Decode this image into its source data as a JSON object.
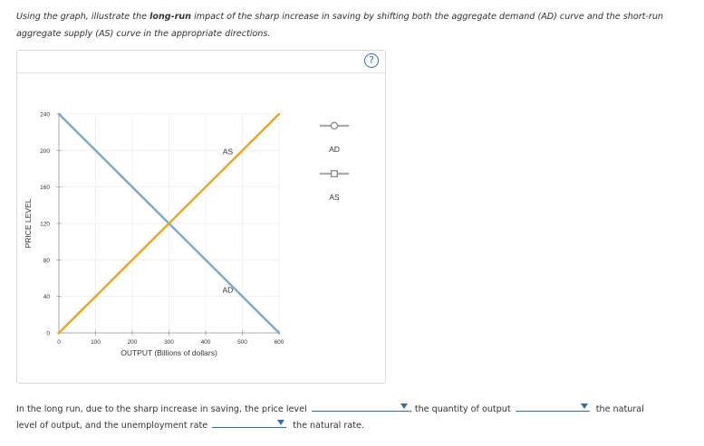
{
  "instructions": {
    "part1": "Using the graph, illustrate the ",
    "bold": "long-run",
    "part2": " impact of the sharp increase in saving by shifting both the aggregate demand (AD) curve and the short-run aggregate supply (AS) curve in the appropriate directions."
  },
  "help_button": {
    "label": "?"
  },
  "chart_data": {
    "type": "line",
    "xlabel": "OUTPUT (Billions of dollars)",
    "ylabel": "PRICE LEVEL",
    "xlim": [
      0,
      600
    ],
    "ylim": [
      0,
      240
    ],
    "x_ticks": [
      "0",
      "100",
      "200",
      "300",
      "400",
      "500",
      "600"
    ],
    "y_ticks": [
      "0",
      "40",
      "80",
      "120",
      "160",
      "200",
      "240"
    ],
    "grid": true,
    "series": [
      {
        "name": "AD",
        "color": "#7aa7d3",
        "points": [
          [
            0,
            240
          ],
          [
            600,
            0
          ]
        ],
        "label_at": [
          480,
          48
        ]
      },
      {
        "name": "AS",
        "color": "#f2a31b",
        "points": [
          [
            0,
            0
          ],
          [
            600,
            240
          ]
        ],
        "label_at": [
          480,
          200
        ]
      }
    ]
  },
  "legend": {
    "items": [
      {
        "label": "AD",
        "marker": "circle-handle-icon"
      },
      {
        "label": "AS",
        "marker": "square-handle-icon"
      }
    ]
  },
  "sentence": {
    "part1": "In the long run, due to the sharp increase in saving, the price level",
    "part2": ", the quantity of output",
    "part3": "the natural",
    "part4": "level of output, and the unemployment rate",
    "part5": "the natural rate.",
    "dropdown_price_level": "",
    "dropdown_output": "",
    "dropdown_unemployment": ""
  }
}
